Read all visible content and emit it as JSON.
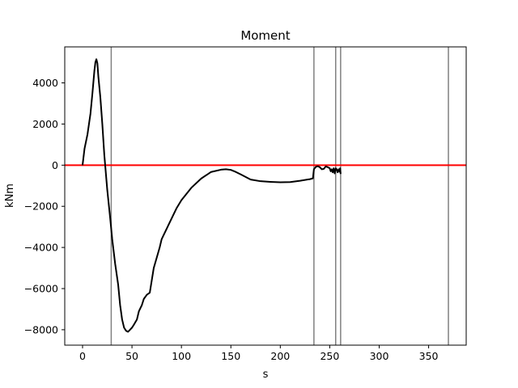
{
  "chart_data": {
    "type": "line",
    "title": "Moment",
    "xlabel": "s",
    "ylabel": "kNm",
    "xlim": [
      -18,
      388
    ],
    "ylim": [
      -8750,
      5750
    ],
    "x_ticks": [
      0,
      50,
      100,
      150,
      200,
      250,
      300,
      350
    ],
    "x_tick_labels": [
      "0",
      "50",
      "100",
      "150",
      "200",
      "250",
      "300",
      "350"
    ],
    "y_ticks": [
      -8000,
      -6000,
      -4000,
      -2000,
      0,
      2000,
      4000
    ],
    "y_tick_labels": [
      "−8000",
      "−6000",
      "−4000",
      "−2000",
      "0",
      "2000",
      "4000"
    ],
    "grid": false,
    "colors": {
      "moment": "#000000",
      "zero_line": "#ff0000",
      "supports": "#808080"
    },
    "zero_line": 0,
    "vertical_lines": [
      29,
      234,
      256,
      261,
      370
    ],
    "series": [
      {
        "x": [
          0,
          2,
          5,
          8,
          10,
          12,
          13,
          14,
          15,
          16,
          18,
          20,
          22,
          25,
          28,
          30,
          33,
          36,
          38,
          40,
          42,
          44,
          46,
          48,
          50,
          52,
          55,
          57,
          60,
          62,
          65,
          68,
          70,
          72,
          75,
          78,
          80,
          85,
          90,
          95,
          100,
          110,
          120,
          130,
          140,
          145,
          150,
          155,
          160,
          170,
          180,
          190,
          200,
          210,
          220,
          230,
          233,
          234,
          236,
          238,
          240,
          242,
          244,
          246,
          248,
          250,
          251,
          252,
          253,
          254,
          255,
          256,
          257,
          258,
          259,
          260,
          260.5,
          261
        ],
        "y": [
          0,
          800,
          1500,
          2500,
          3500,
          4600,
          5000,
          5150,
          4950,
          4300,
          3300,
          2000,
          500,
          -1200,
          -2600,
          -3600,
          -4800,
          -5800,
          -6800,
          -7500,
          -7900,
          -8050,
          -8100,
          -8000,
          -7900,
          -7750,
          -7500,
          -7100,
          -6800,
          -6500,
          -6300,
          -6200,
          -5600,
          -5000,
          -4500,
          -4000,
          -3600,
          -3100,
          -2600,
          -2100,
          -1700,
          -1100,
          -650,
          -330,
          -220,
          -200,
          -230,
          -330,
          -450,
          -700,
          -780,
          -810,
          -830,
          -820,
          -760,
          -680,
          -640,
          -200,
          -80,
          -50,
          -100,
          -200,
          -180,
          -60,
          -100,
          -150,
          -300,
          -200,
          -350,
          -150,
          -400,
          -150,
          -200,
          -350,
          -200,
          -320,
          -150,
          -430
        ]
      }
    ]
  }
}
